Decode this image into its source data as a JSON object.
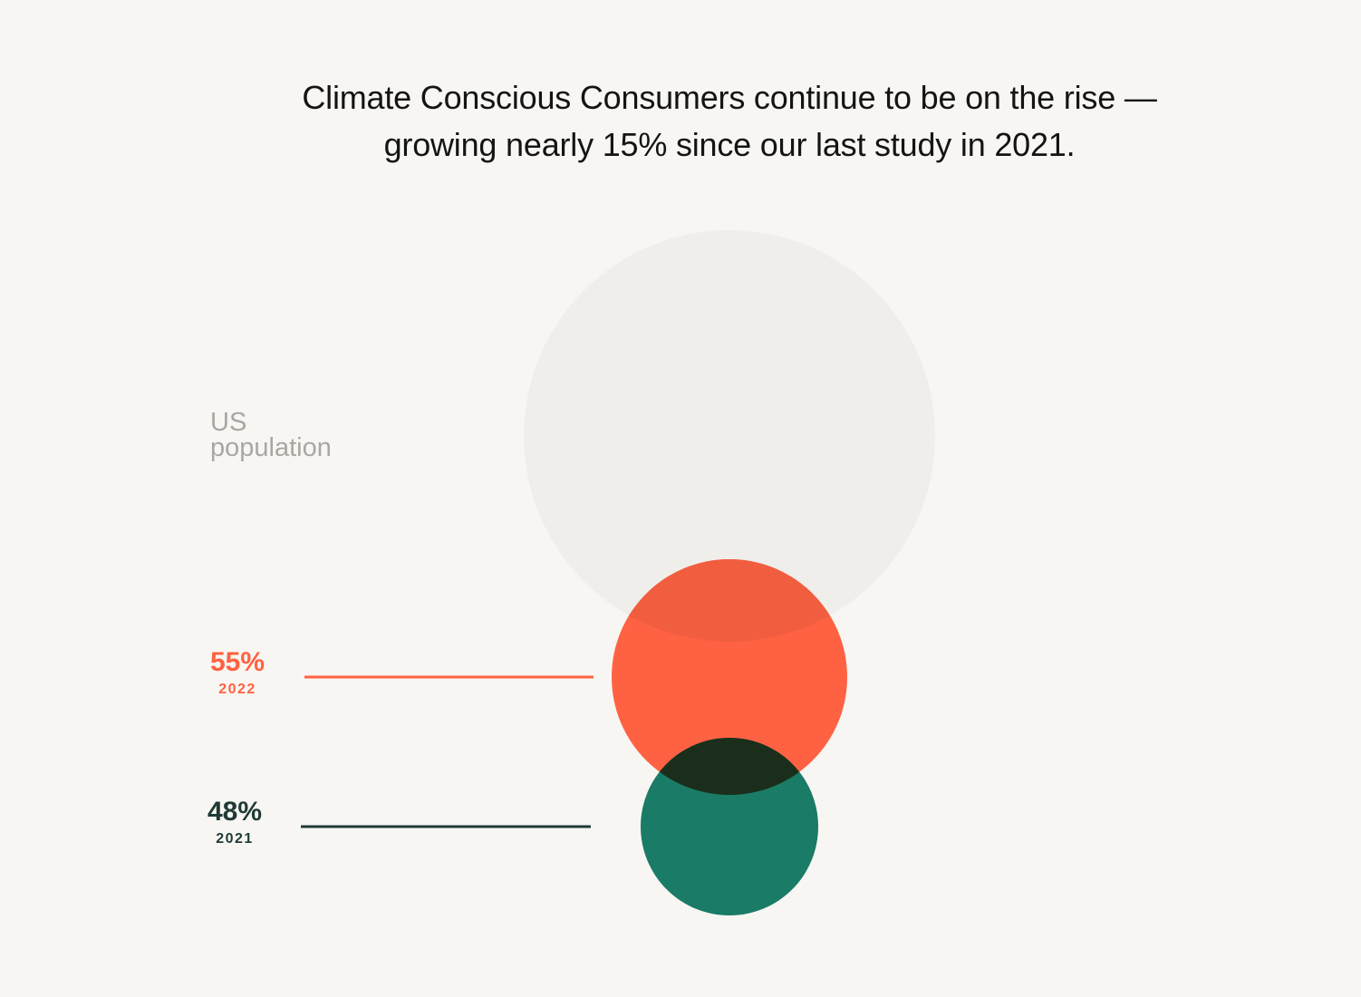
{
  "headline": {
    "line1": "Climate Conscious Consumers continue to be on the rise —",
    "line2": "growing nearly 15% since our last study in 2021."
  },
  "chart_data": {
    "type": "bubble",
    "title": "Climate Conscious Consumers continue to be on the rise — growing nearly 15% since our last study in 2021.",
    "population_label_line1": "US",
    "population_label_line2": "population",
    "series": [
      {
        "name": "2022",
        "value": 55,
        "label": "55%",
        "year": "2022"
      },
      {
        "name": "2021",
        "value": 48,
        "label": "48%",
        "year": "2021"
      }
    ]
  },
  "colors": {
    "background": "#f8f6f2",
    "population": "#efeeea",
    "accent_2022": "#ff6242",
    "accent_2022_overlap": "#f15e3f",
    "accent_2021": "#1a7b66",
    "overlap_dark": "#1b2e1b",
    "label_2021": "#1f3a36",
    "population_text": "#a9a7a3"
  }
}
